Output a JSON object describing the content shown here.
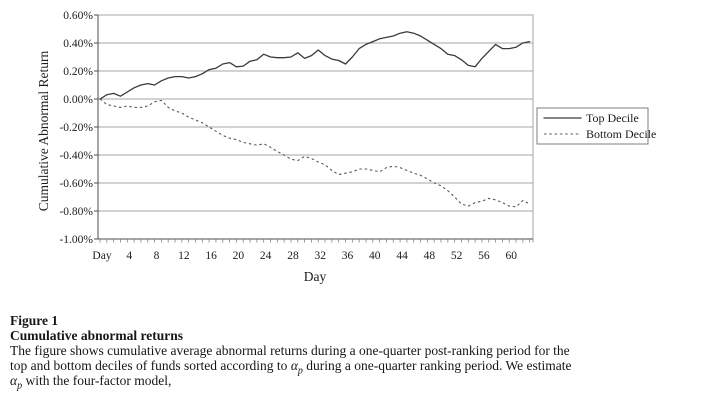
{
  "chart_data": {
    "type": "line",
    "title": "",
    "xlabel": "Day",
    "ylabel": "Cumulative Abnormal Return",
    "y_unit": "percent",
    "x_days_start": 0,
    "x_days_end": 63,
    "x_days_step": 1,
    "x_tick_interval": 4,
    "x_tick_labels": [
      "Day",
      "4",
      "8",
      "12",
      "16",
      "20",
      "24",
      "28",
      "32",
      "36",
      "40",
      "44",
      "48",
      "52",
      "56",
      "60"
    ],
    "y_tick_labels": [
      "0.60%",
      "0.40%",
      "0.20%",
      "0.00%",
      "-0.20%",
      "-0.40%",
      "-0.60%",
      "-0.80%",
      "-1.00%"
    ],
    "y_tick_values": [
      0.6,
      0.4,
      0.2,
      0,
      -0.2,
      -0.4,
      -0.6,
      -0.8,
      -1.0
    ],
    "ylim": [
      -1.0,
      0.6
    ],
    "grid": "horizontal",
    "legend_position": "right-middle",
    "series": [
      {
        "name": "Top Decile",
        "line_style": "solid",
        "color": "#3a3a3a",
        "values": [
          0.0,
          0.03,
          0.04,
          0.02,
          0.05,
          0.08,
          0.1,
          0.11,
          0.1,
          0.13,
          0.15,
          0.16,
          0.16,
          0.15,
          0.16,
          0.18,
          0.21,
          0.22,
          0.25,
          0.26,
          0.23,
          0.235,
          0.27,
          0.28,
          0.32,
          0.3,
          0.295,
          0.295,
          0.3,
          0.33,
          0.29,
          0.31,
          0.35,
          0.31,
          0.285,
          0.275,
          0.25,
          0.3,
          0.36,
          0.39,
          0.41,
          0.43,
          0.44,
          0.45,
          0.47,
          0.48,
          0.47,
          0.45,
          0.42,
          0.39,
          0.36,
          0.32,
          0.31,
          0.28,
          0.24,
          0.23,
          0.29,
          0.34,
          0.39,
          0.36,
          0.36,
          0.37,
          0.4,
          0.41
        ]
      },
      {
        "name": "Bottom Decile",
        "line_style": "dotted",
        "color": "#595959",
        "values": [
          0.0,
          -0.04,
          -0.05,
          -0.06,
          -0.05,
          -0.06,
          -0.06,
          -0.05,
          -0.02,
          -0.01,
          -0.06,
          -0.085,
          -0.1,
          -0.13,
          -0.15,
          -0.17,
          -0.2,
          -0.23,
          -0.26,
          -0.28,
          -0.29,
          -0.31,
          -0.32,
          -0.33,
          -0.32,
          -0.345,
          -0.375,
          -0.4,
          -0.43,
          -0.44,
          -0.41,
          -0.425,
          -0.45,
          -0.47,
          -0.51,
          -0.54,
          -0.53,
          -0.52,
          -0.5,
          -0.5,
          -0.51,
          -0.52,
          -0.49,
          -0.48,
          -0.49,
          -0.51,
          -0.53,
          -0.545,
          -0.57,
          -0.6,
          -0.62,
          -0.655,
          -0.7,
          -0.75,
          -0.765,
          -0.74,
          -0.73,
          -0.71,
          -0.72,
          -0.74,
          -0.765,
          -0.77,
          -0.725,
          -0.75
        ]
      }
    ]
  },
  "legend": {
    "items": [
      {
        "label": "Top Decile"
      },
      {
        "label": "Bottom Decile"
      }
    ]
  },
  "caption": {
    "figure_label": "Figure 1",
    "figure_title": "Cumulative abnormal returns",
    "line1": "The figure shows cumulative average abnormal returns during a one-quarter post-ranking period for the",
    "line2_pre": "top and bottom deciles of funds sorted according to ",
    "line2_post": " during a one-quarter ranking period. We estimate",
    "line3_post": " with the four-factor model,",
    "alpha": "α",
    "alpha_sub": "p"
  },
  "colors": {
    "background": "#ffffff",
    "gridline": "#a6a6a6",
    "axis": "#4d4d4d",
    "frame": "#a6a6a6",
    "text": "#1c1c1c",
    "top_decile_line": "#3a3a3a",
    "bottom_decile_line": "#595959"
  }
}
